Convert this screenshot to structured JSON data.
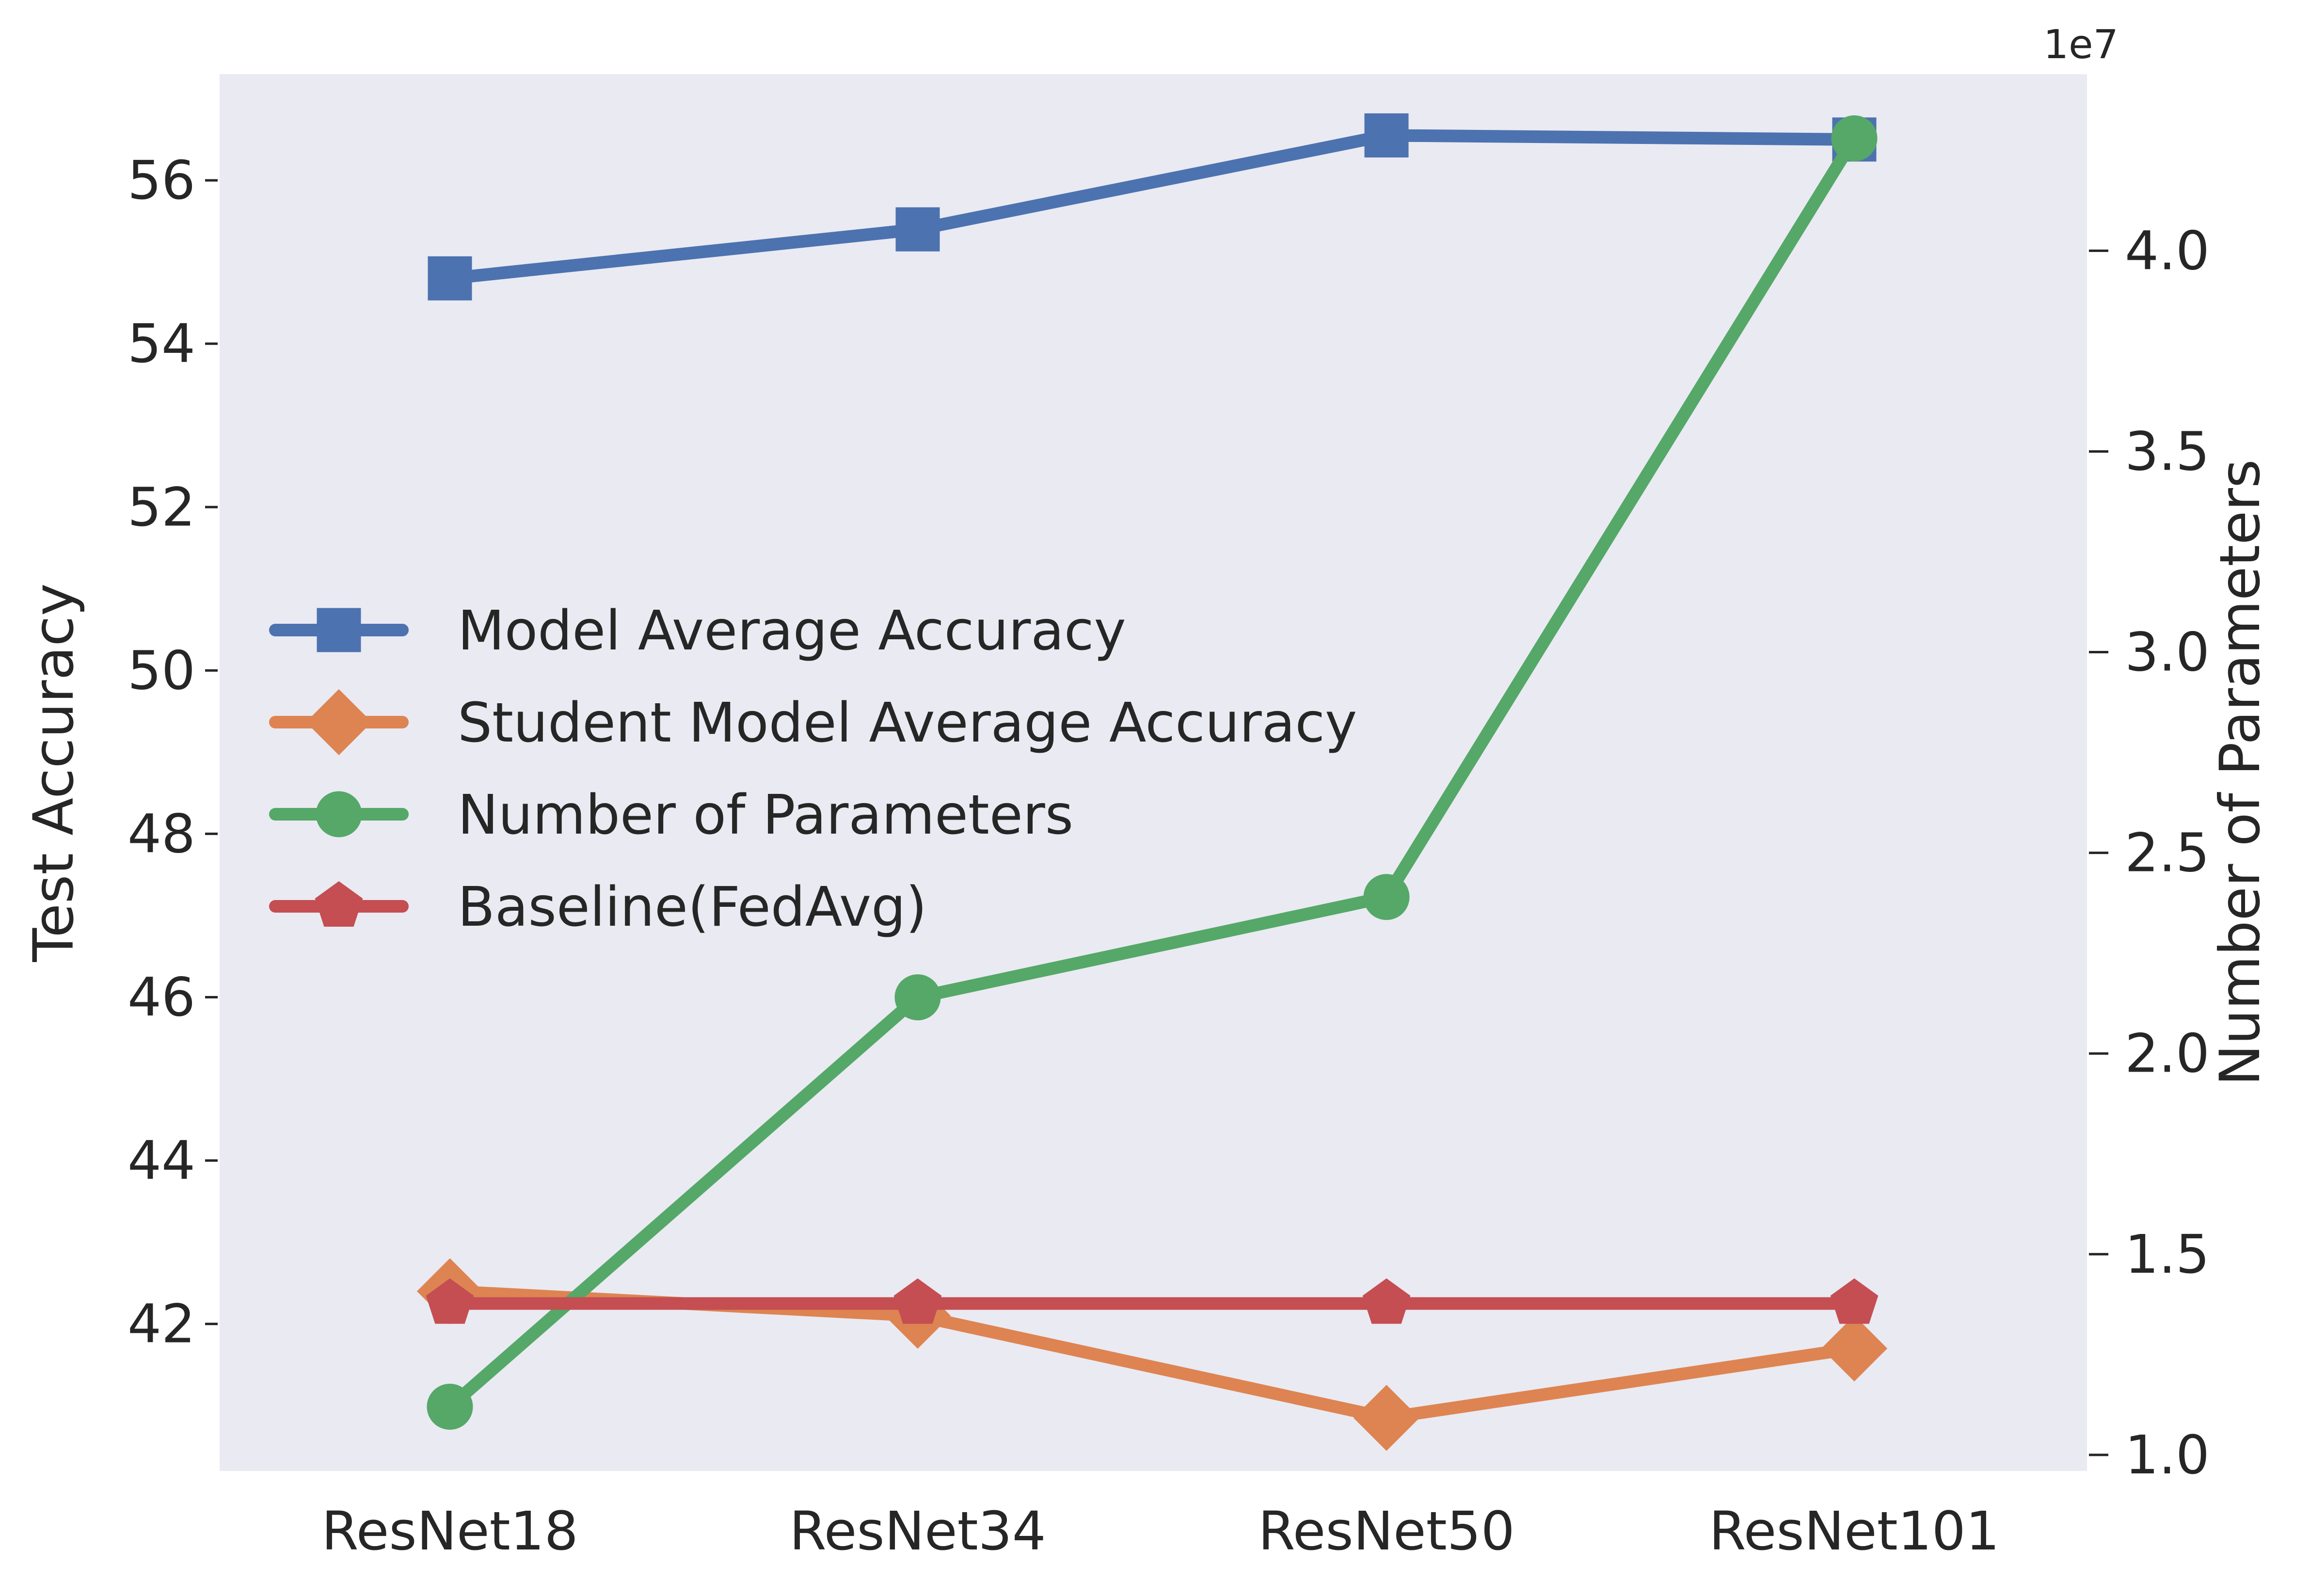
{
  "chart_data": {
    "type": "line",
    "categories": [
      "ResNet18",
      "ResNet34",
      "ResNet50",
      "ResNet101"
    ],
    "ylabel": "Test Accuracy",
    "ylabel_right": "Number of Parameters",
    "right_axis_offset_label": "1e7",
    "ylim": [
      40.2,
      57.3
    ],
    "ylim_right": [
      0.96,
      4.44
    ],
    "yticks": [
      42,
      44,
      46,
      48,
      50,
      52,
      54,
      56
    ],
    "yticks_right": [
      1.0,
      1.5,
      2.0,
      2.5,
      3.0,
      3.5,
      4.0
    ],
    "grid": false,
    "legend_position": "center-left",
    "series": [
      {
        "name": "Model Average Accuracy",
        "axis": "left",
        "marker": "square",
        "color": "#4c72b0",
        "values": [
          54.8,
          55.4,
          56.55,
          56.5
        ]
      },
      {
        "name": "Student Model Average Accuracy",
        "axis": "left",
        "marker": "diamond",
        "color": "#dd8452",
        "values": [
          42.4,
          42.1,
          40.85,
          41.7
        ]
      },
      {
        "name": "Number of Parameters",
        "axis": "right",
        "marker": "circle",
        "color": "#55a868",
        "values": [
          1.12,
          2.14,
          2.39,
          4.28
        ]
      },
      {
        "name": "Baseline(FedAvg)",
        "axis": "left",
        "marker": "pentagon",
        "color": "#c44e52",
        "values": [
          42.25,
          42.25,
          42.25,
          42.25
        ]
      }
    ]
  }
}
